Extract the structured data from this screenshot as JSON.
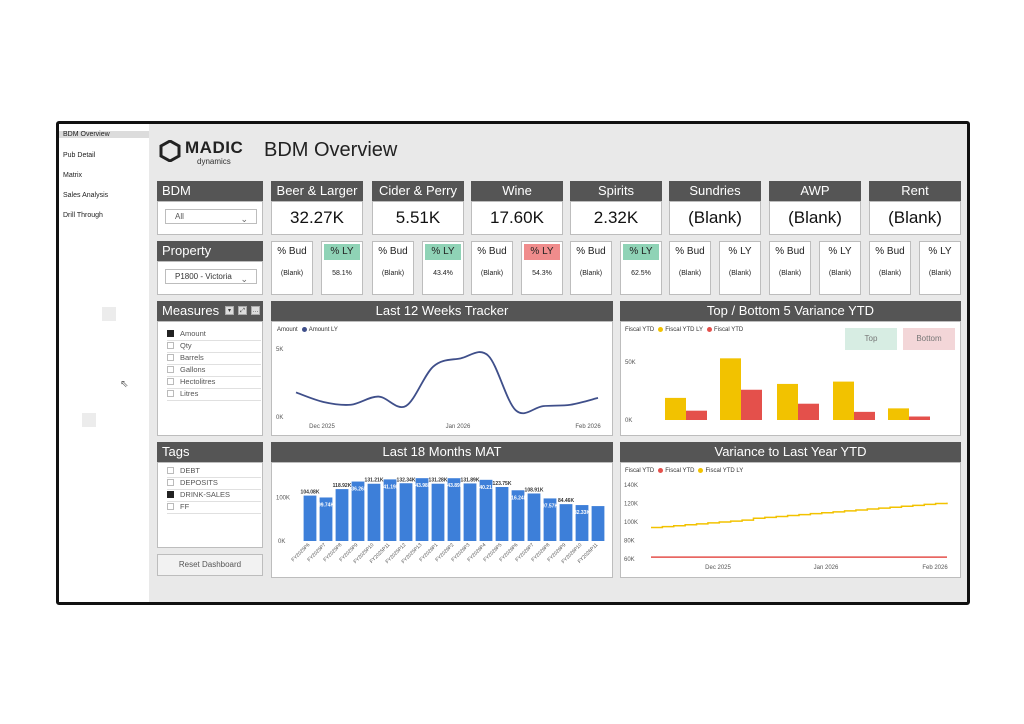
{
  "nav": {
    "items": [
      {
        "label": "BDM Overview"
      },
      {
        "label": "Pub Detail"
      },
      {
        "label": "Matrix"
      },
      {
        "label": "Sales Analysis"
      },
      {
        "label": "Drill Through"
      }
    ]
  },
  "brand": {
    "name": "MADIC",
    "sub": "dynamics"
  },
  "page_title": "BDM Overview",
  "filters": {
    "bdm": {
      "label": "BDM",
      "value": "All"
    },
    "property": {
      "label": "Property",
      "value": "P1800 - Victoria"
    }
  },
  "kpis": [
    {
      "label": "Beer & Larger",
      "value": "32.27K",
      "bud_label": "% Bud",
      "bud": "(Blank)",
      "ly_label": "% LY",
      "ly": "58.1%",
      "ly_status": "good"
    },
    {
      "label": "Cider & Perry",
      "value": "5.51K",
      "bud_label": "% Bud",
      "bud": "(Blank)",
      "ly_label": "% LY",
      "ly": "43.4%",
      "ly_status": "good"
    },
    {
      "label": "Wine",
      "value": "17.60K",
      "bud_label": "% Bud",
      "bud": "(Blank)",
      "ly_label": "% LY",
      "ly": "54.3%",
      "ly_status": "bad"
    },
    {
      "label": "Spirits",
      "value": "2.32K",
      "bud_label": "% Bud",
      "bud": "(Blank)",
      "ly_label": "% LY",
      "ly": "62.5%",
      "ly_status": "good"
    },
    {
      "label": "Sundries",
      "value": "(Blank)",
      "bud_label": "% Bud",
      "bud": "(Blank)",
      "ly_label": "% LY",
      "ly": "(Blank)",
      "ly_status": "none"
    },
    {
      "label": "AWP",
      "value": "(Blank)",
      "bud_label": "% Bud",
      "bud": "(Blank)",
      "ly_label": "% LY",
      "ly": "(Blank)",
      "ly_status": "none"
    },
    {
      "label": "Rent",
      "value": "(Blank)",
      "bud_label": "% Bud",
      "bud": "(Blank)",
      "ly_label": "% LY",
      "ly": "(Blank)",
      "ly_status": "none"
    }
  ],
  "measures": {
    "label": "Measures",
    "items": [
      {
        "label": "Amount",
        "checked": true
      },
      {
        "label": "Qty",
        "checked": false
      },
      {
        "label": "Barrels",
        "checked": false
      },
      {
        "label": "Gallons",
        "checked": false
      },
      {
        "label": "Hectolitres",
        "checked": false
      },
      {
        "label": "Litres",
        "checked": false
      }
    ]
  },
  "tags": {
    "label": "Tags",
    "items": [
      {
        "label": "DEBT",
        "checked": false
      },
      {
        "label": "DEPOSITS",
        "checked": false
      },
      {
        "label": "DRINK-SALES",
        "checked": true
      },
      {
        "label": "FF",
        "checked": false
      }
    ]
  },
  "reset_label": "Reset Dashboard",
  "colors": {
    "header": "#555555",
    "good": "#8fd3b6",
    "bad": "#f08c8c",
    "bar_blue": "#3d7fd9",
    "yellow": "#f2c200",
    "red": "#e4504b",
    "line": "#3f4f8a"
  },
  "chart_data": [
    {
      "type": "line",
      "title": "Last 12 Weeks Tracker",
      "legend": [
        "Amount",
        "Amount LY"
      ],
      "x_ticks": [
        "Dec 2025",
        "Jan 2026",
        "Feb 2026"
      ],
      "y_ticks": [
        "5K",
        "0K"
      ],
      "ylim": [
        0,
        5500
      ],
      "series": [
        {
          "name": "Amount",
          "values": [
            1800,
            1100,
            900,
            1500,
            800,
            3700,
            4300,
            4500,
            500,
            800,
            900,
            1400
          ]
        }
      ]
    },
    {
      "type": "bar",
      "title": "Top / Bottom 5 Variance YTD",
      "legend": [
        "Fiscal YTD",
        "Fiscal YTD LY",
        "Fiscal YTD"
      ],
      "buttons": {
        "top": "Top",
        "bottom": "Bottom"
      },
      "y_ticks": [
        "50K",
        "0K"
      ],
      "ylim": [
        0,
        55000
      ],
      "series": [
        {
          "name": "Fiscal YTD LY",
          "values": [
            19000,
            53000,
            31000,
            33000,
            10000
          ]
        },
        {
          "name": "Fiscal YTD",
          "values": [
            8000,
            26000,
            14000,
            7000,
            3000
          ]
        }
      ]
    },
    {
      "type": "bar",
      "title": "Last 18 Months MAT",
      "y_ticks": [
        "100K",
        "0K"
      ],
      "ylim": [
        0,
        165000
      ],
      "categories": [
        "FY2025P6",
        "FY2025P7",
        "FY2025P8",
        "FY2025P9",
        "FY2025P10",
        "FY2025P11",
        "FY2025P12",
        "FY2025P13",
        "FY2026P1",
        "FY2026P2",
        "FY2026P3",
        "FY2026P4",
        "FY2026P5",
        "FY2026P6",
        "FY2026P7",
        "FY2026P8",
        "FY2026P9",
        "FY2026P10",
        "FY2026P11"
      ],
      "values": [
        104.08,
        99.74,
        118.92,
        136.26,
        131.21,
        141.19,
        132.34,
        143.98,
        131.28,
        143.89,
        131.89,
        140.21,
        123.75,
        116.24,
        108.91,
        97.57,
        84.46,
        82.33,
        80.0
      ],
      "data_labels": [
        "104.08K",
        "99.74K",
        "118.92K",
        "136.26K",
        "131.21K",
        "141.19K",
        "132.34K",
        "143.98K",
        "131.28K",
        "143.89K",
        "131.89K",
        "140.21K",
        "123.75K",
        "116.24K",
        "108.91K",
        "97.57K",
        "84.46K",
        "82.33K",
        ""
      ]
    },
    {
      "type": "line",
      "title": "Variance to Last Year YTD",
      "legend": [
        "Fiscal YTD",
        "Fiscal YTD LY"
      ],
      "x_ticks": [
        "Dec 2025",
        "Jan 2026",
        "Feb 2026"
      ],
      "y_ticks": [
        "140K",
        "120K",
        "100K",
        "80K",
        "60K"
      ],
      "ylim": [
        60,
        140
      ],
      "series": [
        {
          "name": "Fiscal YTD LY",
          "values": [
            94,
            95,
            96,
            97,
            98,
            99,
            100,
            101,
            102,
            104,
            105,
            106,
            107,
            108,
            109,
            110,
            111,
            112,
            113,
            114,
            115,
            116,
            117,
            118,
            119,
            120,
            121
          ]
        },
        {
          "name": "Fiscal YTD",
          "values": [
            62,
            62,
            62,
            62,
            62,
            62,
            62,
            62,
            62,
            62,
            62,
            62,
            62,
            62,
            62,
            62,
            62,
            62,
            62,
            62,
            62,
            62,
            62,
            62,
            62,
            62,
            62
          ]
        }
      ]
    }
  ]
}
